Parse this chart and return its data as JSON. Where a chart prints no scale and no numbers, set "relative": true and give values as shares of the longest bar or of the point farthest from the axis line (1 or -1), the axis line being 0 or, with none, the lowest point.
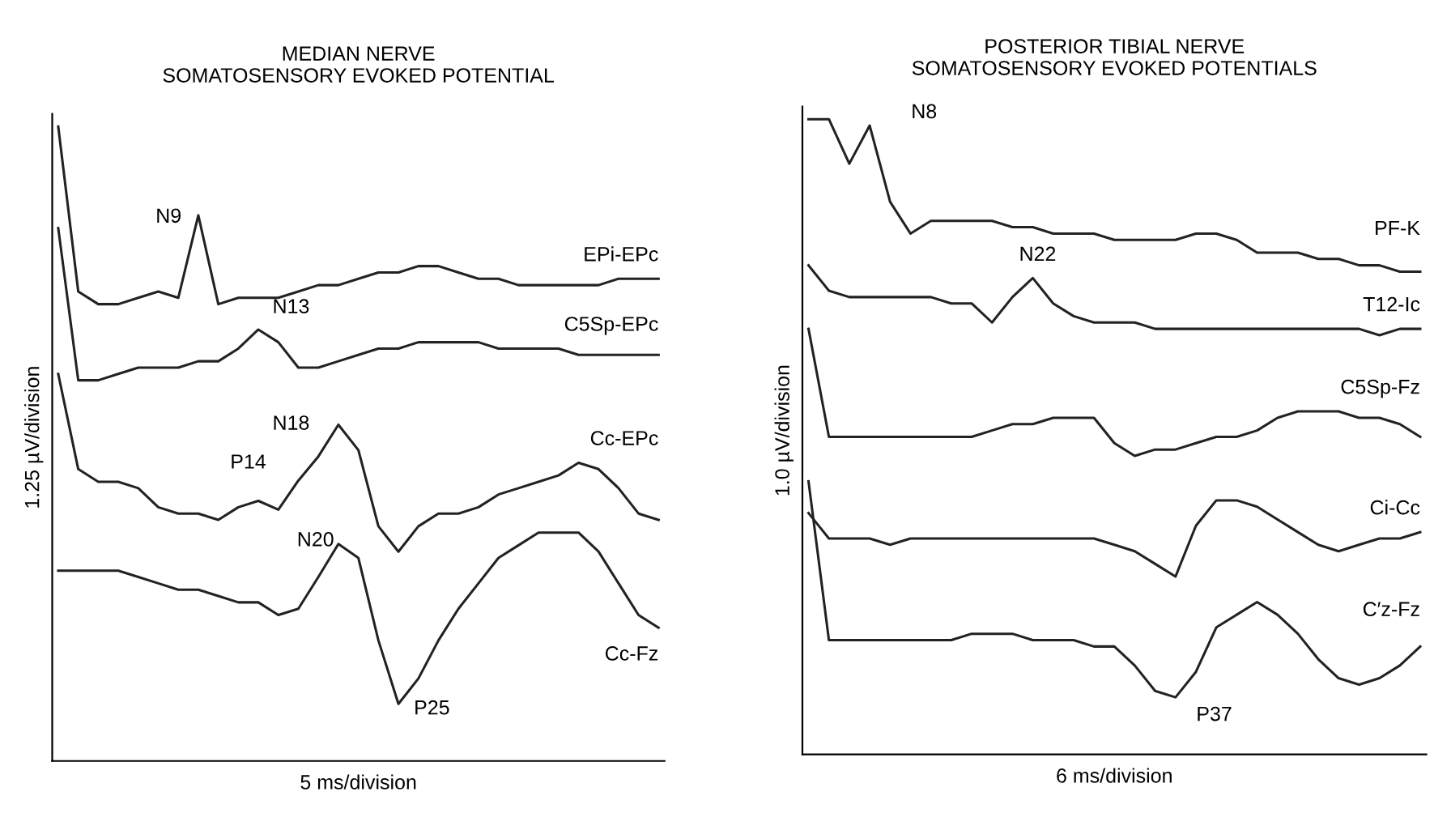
{
  "chart_data": [
    {
      "type": "line",
      "title": "MEDIAN NERVE\nSOMATOSENSORY EVOKED POTENTIAL",
      "xlabel": "5 ms/division",
      "ylabel": "1.25 µV/division",
      "relative": true,
      "tick_labels": false,
      "marker": "none",
      "line_style": "solid",
      "categories": [
        null,
        null,
        null,
        null,
        null,
        null,
        null,
        null,
        null,
        null,
        null,
        null,
        null,
        null,
        null,
        null,
        null,
        null,
        null,
        null,
        null,
        null,
        null,
        null,
        null,
        null,
        null,
        null,
        null,
        null,
        null
      ],
      "series": [
        {
          "name": "EPi-EPc",
          "color": "#222222",
          "values": [
            1.0,
            0.74,
            0.72,
            0.72,
            0.73,
            0.74,
            0.73,
            0.86,
            0.72,
            0.73,
            0.73,
            0.73,
            0.74,
            0.75,
            0.75,
            0.76,
            0.77,
            0.77,
            0.78,
            0.78,
            0.77,
            0.76,
            0.76,
            0.75,
            0.75,
            0.75,
            0.75,
            0.75,
            0.76,
            0.76,
            0.76
          ]
        },
        {
          "name": "C5Sp-EPc",
          "color": "#222222",
          "values": [
            0.84,
            0.6,
            0.6,
            0.61,
            0.62,
            0.62,
            0.62,
            0.63,
            0.63,
            0.65,
            0.68,
            0.66,
            0.62,
            0.62,
            0.63,
            0.64,
            0.65,
            0.65,
            0.66,
            0.66,
            0.66,
            0.66,
            0.65,
            0.65,
            0.65,
            0.65,
            0.64,
            0.64,
            0.64,
            0.64,
            0.64
          ]
        },
        {
          "name": "Cc-EPc",
          "color": "#222222",
          "values": [
            0.61,
            0.46,
            0.44,
            0.44,
            0.43,
            0.4,
            0.39,
            0.39,
            0.38,
            0.4,
            0.41,
            0.396,
            0.442,
            0.48,
            0.53,
            0.49,
            0.37,
            0.33,
            0.37,
            0.39,
            0.39,
            0.4,
            0.42,
            0.43,
            0.44,
            0.45,
            0.47,
            0.46,
            0.43,
            0.39,
            0.38
          ]
        },
        {
          "name": "Cc-Fz",
          "color": "#222222",
          "values": [
            0.3,
            0.3,
            0.3,
            0.3,
            0.29,
            0.28,
            0.27,
            0.27,
            0.26,
            0.25,
            0.25,
            0.23,
            0.24,
            0.29,
            0.342,
            0.32,
            0.19,
            0.09,
            0.13,
            0.19,
            0.24,
            0.28,
            0.32,
            0.34,
            0.36,
            0.36,
            0.36,
            0.33,
            0.28,
            0.23,
            0.21
          ]
        }
      ],
      "annotations": [
        "N9",
        "N13",
        "P14",
        "N18",
        "N20",
        "P25"
      ]
    },
    {
      "type": "line",
      "title": "POSTERIOR TIBIAL NERVE\nSOMATOSENSORY EVOKED POTENTIALS",
      "xlabel": "6 ms/division",
      "ylabel": "1.0 µV/division",
      "relative": true,
      "tick_labels": false,
      "marker": "none",
      "line_style": "solid",
      "categories": [
        null,
        null,
        null,
        null,
        null,
        null,
        null,
        null,
        null,
        null,
        null,
        null,
        null,
        null,
        null,
        null,
        null,
        null,
        null,
        null,
        null,
        null,
        null,
        null,
        null,
        null,
        null,
        null,
        null,
        null,
        null
      ],
      "series": [
        {
          "name": "PF-K",
          "color": "#222222",
          "values": [
            1.0,
            1.0,
            0.93,
            0.99,
            0.87,
            0.82,
            0.84,
            0.84,
            0.84,
            0.84,
            0.83,
            0.83,
            0.82,
            0.82,
            0.82,
            0.81,
            0.81,
            0.81,
            0.81,
            0.82,
            0.82,
            0.81,
            0.79,
            0.79,
            0.79,
            0.78,
            0.78,
            0.77,
            0.77,
            0.76,
            0.76
          ]
        },
        {
          "name": "T12-Ic",
          "color": "#222222",
          "values": [
            0.77,
            0.73,
            0.72,
            0.72,
            0.72,
            0.72,
            0.72,
            0.71,
            0.71,
            0.68,
            0.72,
            0.75,
            0.71,
            0.69,
            0.68,
            0.68,
            0.68,
            0.67,
            0.67,
            0.67,
            0.67,
            0.67,
            0.67,
            0.67,
            0.67,
            0.67,
            0.67,
            0.67,
            0.66,
            0.67,
            0.67
          ]
        },
        {
          "name": "C5Sp-Fz",
          "color": "#222222",
          "values": [
            0.67,
            0.5,
            0.5,
            0.5,
            0.5,
            0.5,
            0.5,
            0.5,
            0.5,
            0.51,
            0.52,
            0.52,
            0.53,
            0.53,
            0.53,
            0.49,
            0.47,
            0.48,
            0.48,
            0.49,
            0.5,
            0.5,
            0.51,
            0.53,
            0.54,
            0.54,
            0.54,
            0.53,
            0.53,
            0.52,
            0.5
          ]
        },
        {
          "name": "Ci-Cc",
          "color": "#222222",
          "values": [
            0.38,
            0.34,
            0.34,
            0.34,
            0.33,
            0.34,
            0.34,
            0.34,
            0.34,
            0.34,
            0.34,
            0.34,
            0.34,
            0.34,
            0.34,
            0.33,
            0.32,
            0.3,
            0.28,
            0.36,
            0.4,
            0.4,
            0.39,
            0.37,
            0.35,
            0.33,
            0.32,
            0.33,
            0.34,
            0.34,
            0.35
          ]
        },
        {
          "name": "C′z-Fz",
          "color": "#222222",
          "values": [
            0.43,
            0.18,
            0.18,
            0.18,
            0.18,
            0.18,
            0.18,
            0.18,
            0.19,
            0.19,
            0.19,
            0.18,
            0.18,
            0.18,
            0.17,
            0.17,
            0.14,
            0.1,
            0.09,
            0.13,
            0.2,
            0.22,
            0.24,
            0.22,
            0.19,
            0.15,
            0.12,
            0.11,
            0.12,
            0.14,
            0.17
          ]
        }
      ],
      "annotations": [
        "N8",
        "N22",
        "P37"
      ]
    }
  ]
}
